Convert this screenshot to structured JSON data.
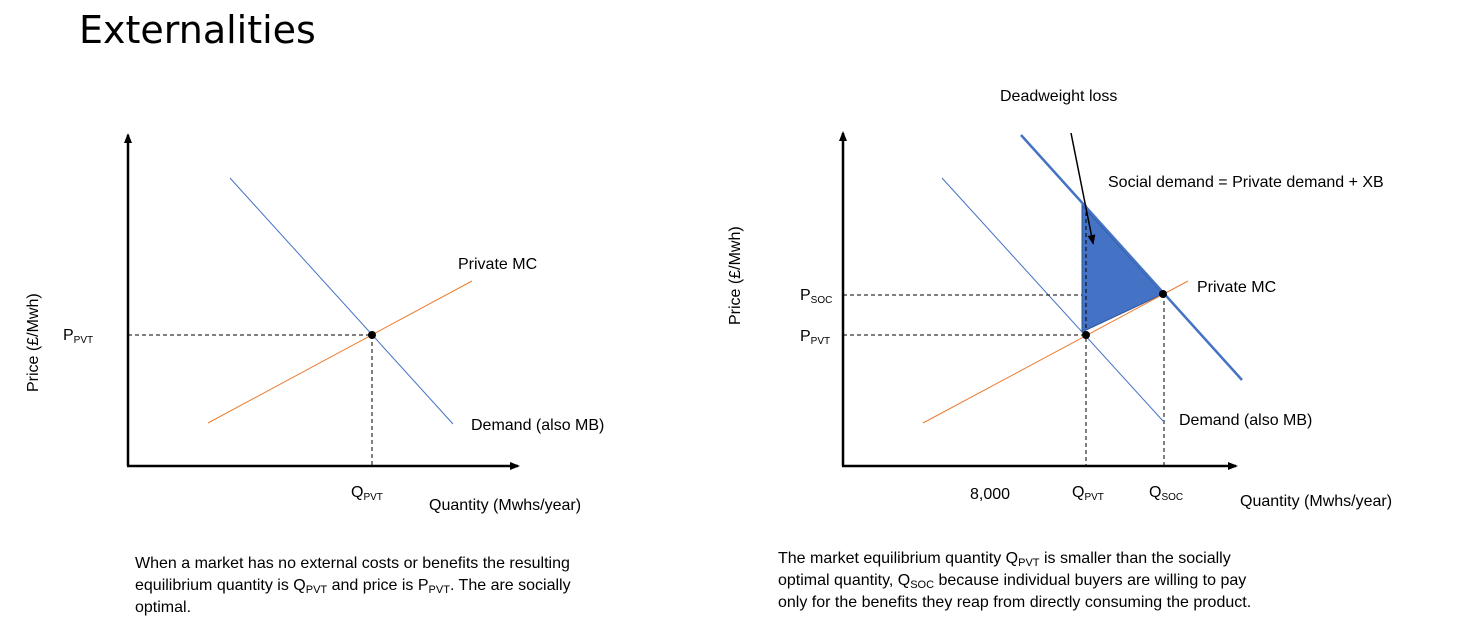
{
  "title": "Externalities",
  "left_diagram": {
    "y_axis_label": "Price (£/Mwh)",
    "x_axis_label": "Quantity (Mwhs/year)",
    "supply_label": "Private MC",
    "demand_label": "Demand (also MB)",
    "p_pvt": {
      "main": "P",
      "sub": "PVT"
    },
    "q_pvt": {
      "main": "Q",
      "sub": "PVT"
    },
    "colors": {
      "demand": "#4472C4",
      "supply": "#ED7D31"
    }
  },
  "right_diagram": {
    "y_axis_label": "Price (£/Mwh)",
    "x_axis_label": "Quantity (Mwhs/year)",
    "deadweight_label": "Deadweight loss",
    "social_demand_label": "Social demand = Private demand + XB",
    "supply_label": "Private MC",
    "demand_label": "Demand (also MB)",
    "p_soc": {
      "main": "P",
      "sub": "SOC"
    },
    "p_pvt": {
      "main": "P",
      "sub": "PVT"
    },
    "q_pvt": {
      "main": "Q",
      "sub": "PVT"
    },
    "q_soc": {
      "main": "Q",
      "sub": "SOC"
    },
    "x_tick": "8,000",
    "colors": {
      "demand": "#4472C4",
      "social_demand": "#4472C4",
      "supply": "#ED7D31",
      "deadweight_fill": "#4472C4"
    }
  },
  "captions": {
    "left": {
      "l1": "When a market has no external costs or benefits the resulting",
      "l2_a": "equilibrium quantity is Q",
      "l2_sub1": "PVT",
      "l2_b": " and price is P",
      "l2_sub2": "PVT",
      "l2_c": ". The are socially",
      "l3": "optimal."
    },
    "right": {
      "l1_a": "The market equilibrium quantity Q",
      "l1_sub": "PVT",
      "l1_b": " is smaller than the socially",
      "l2_a": "optimal quantity, Q",
      "l2_sub": "SOC",
      "l2_b": " because individual buyers are willing to pay",
      "l3": "only for the benefits they reap from directly consuming the product."
    }
  }
}
